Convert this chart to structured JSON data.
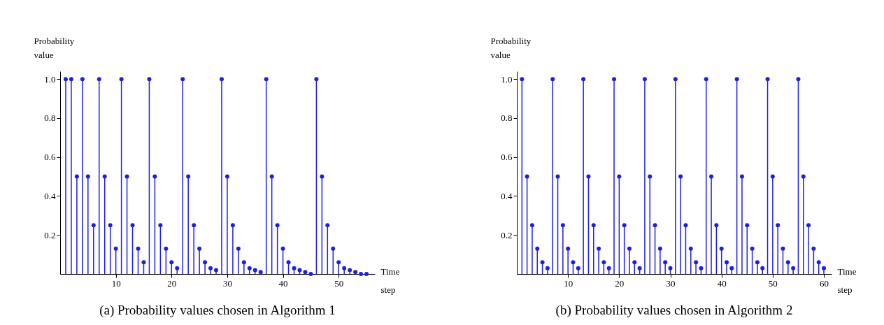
{
  "chart_data": [
    {
      "type": "lollipop",
      "title": "(a) Probability values chosen in Algorithm 1",
      "xlabel": "Time step",
      "ylabel": "Probability value",
      "marker": "circle",
      "grid": false,
      "x": [
        1,
        2,
        3,
        4,
        5,
        6,
        7,
        8,
        9,
        10,
        11,
        12,
        13,
        14,
        15,
        16,
        17,
        18,
        19,
        20,
        21,
        22,
        23,
        24,
        25,
        26,
        27,
        28,
        29,
        30,
        31,
        32,
        33,
        34,
        35,
        36,
        37,
        38,
        39,
        40,
        41,
        42,
        43,
        44,
        45,
        46,
        47,
        48,
        49,
        50,
        51,
        52,
        53,
        54,
        55
      ],
      "series": [
        {
          "color": "#1f1fe0",
          "values": [
            1,
            1,
            0.5,
            1,
            0.5,
            0.25,
            1,
            0.5,
            0.25,
            0.13,
            1,
            0.5,
            0.25,
            0.13,
            0.06,
            1,
            0.5,
            0.25,
            0.13,
            0.06,
            0.03,
            1,
            0.5,
            0.25,
            0.13,
            0.06,
            0.03,
            0.02,
            1,
            0.5,
            0.25,
            0.13,
            0.06,
            0.03,
            0.02,
            0.01,
            1,
            0.5,
            0.25,
            0.13,
            0.06,
            0.03,
            0.02,
            0.01,
            0,
            1,
            0.5,
            0.25,
            0.13,
            0.06,
            0.03,
            0.02,
            0.01,
            0,
            0
          ]
        }
      ],
      "xlim": [
        0,
        56.5
      ],
      "xticks": [
        10,
        20,
        30,
        40,
        50
      ],
      "ylim": [
        0,
        1.04
      ],
      "yticks": [
        0.2,
        0.4,
        0.6,
        0.8,
        {
          "value": 1,
          "label": "1.0"
        }
      ]
    },
    {
      "type": "lollipop",
      "title": "(b) Probability values chosen in Algorithm 2",
      "xlabel": "Time step",
      "ylabel": "Probability value",
      "marker": "circle",
      "grid": false,
      "x": [
        1,
        2,
        3,
        4,
        5,
        6,
        7,
        8,
        9,
        10,
        11,
        12,
        13,
        14,
        15,
        16,
        17,
        18,
        19,
        20,
        21,
        22,
        23,
        24,
        25,
        26,
        27,
        28,
        29,
        30,
        31,
        32,
        33,
        34,
        35,
        36,
        37,
        38,
        39,
        40,
        41,
        42,
        43,
        44,
        45,
        46,
        47,
        48,
        49,
        50,
        51,
        52,
        53,
        54,
        55,
        56,
        57,
        58,
        59,
        60
      ],
      "series": [
        {
          "color": "#1f1fe0",
          "values": [
            1,
            0.5,
            0.25,
            0.13,
            0.06,
            0.03,
            1,
            0.5,
            0.25,
            0.13,
            0.06,
            0.03,
            1,
            0.5,
            0.25,
            0.13,
            0.06,
            0.03,
            1,
            0.5,
            0.25,
            0.13,
            0.06,
            0.03,
            1,
            0.5,
            0.25,
            0.13,
            0.06,
            0.03,
            1,
            0.5,
            0.25,
            0.13,
            0.06,
            0.03,
            1,
            0.5,
            0.25,
            0.13,
            0.06,
            0.03,
            1,
            0.5,
            0.25,
            0.13,
            0.06,
            0.03,
            1,
            0.5,
            0.25,
            0.13,
            0.06,
            0.03,
            1,
            0.5,
            0.25,
            0.13,
            0.06,
            0.03
          ]
        }
      ],
      "xlim": [
        0,
        61.5
      ],
      "xticks": [
        10,
        20,
        30,
        40,
        50,
        60
      ],
      "ylim": [
        0,
        1.04
      ],
      "yticks": [
        0.2,
        0.4,
        0.6,
        0.8,
        {
          "value": 1,
          "label": "1.0"
        }
      ]
    }
  ]
}
